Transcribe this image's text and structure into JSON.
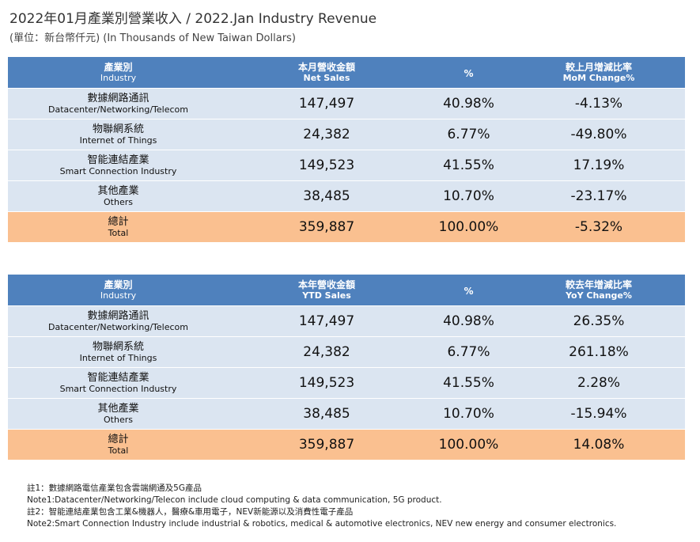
{
  "title": "2022年01月產業別營業收入 / 2022.Jan Industry Revenue",
  "subtitle": "(單位：新台幣仟元) (In Thousands of New Taiwan Dollars)",
  "monthly": {
    "headers": {
      "industry_zh": "產業別",
      "industry_en": "Industry",
      "sales_zh": "本月營收金額",
      "sales_en": "Net Sales",
      "pct": "%",
      "change_zh": "較上月增減比率",
      "change_en": "MoM Change%"
    },
    "rows": [
      {
        "zh": "數據網路通訊",
        "en": "Datacenter/Networking/Telecom",
        "sales": "147,497",
        "pct": "40.98%",
        "change": "-4.13%"
      },
      {
        "zh": "物聯網系統",
        "en": "Internet of Things",
        "sales": "24,382",
        "pct": "6.77%",
        "change": "-49.80%"
      },
      {
        "zh": "智能連結產業",
        "en": "Smart Connection Industry",
        "sales": "149,523",
        "pct": "41.55%",
        "change": "17.19%"
      },
      {
        "zh": "其他產業",
        "en": "Others",
        "sales": "38,485",
        "pct": "10.70%",
        "change": "-23.17%"
      }
    ],
    "total": {
      "zh": "總計",
      "en": "Total",
      "sales": "359,887",
      "pct": "100.00%",
      "change": "-5.32%"
    }
  },
  "ytd": {
    "headers": {
      "industry_zh": "產業別",
      "industry_en": "Industry",
      "sales_zh": "本年營收金額",
      "sales_en": "YTD Sales",
      "pct": "%",
      "change_zh": "較去年增減比率",
      "change_en": "YoY Change%"
    },
    "rows": [
      {
        "zh": "數據網路通訊",
        "en": "Datacenter/Networking/Telecom",
        "sales": "147,497",
        "pct": "40.98%",
        "change": "26.35%"
      },
      {
        "zh": "物聯網系統",
        "en": "Internet of Things",
        "sales": "24,382",
        "pct": "6.77%",
        "change": "261.18%"
      },
      {
        "zh": "智能連結產業",
        "en": "Smart Connection Industry",
        "sales": "149,523",
        "pct": "41.55%",
        "change": "2.28%"
      },
      {
        "zh": "其他產業",
        "en": "Others",
        "sales": "38,485",
        "pct": "10.70%",
        "change": "-15.94%"
      }
    ],
    "total": {
      "zh": "總計",
      "en": "Total",
      "sales": "359,887",
      "pct": "100.00%",
      "change": "14.08%"
    }
  },
  "notes": [
    "註1：數據網路電信產業包含雲端網通及5G產品",
    "Note1:Datacenter/Networking/Telecon include cloud computing & data communication, 5G product.",
    "註2：智能連結產業包含工業&機器人，醫療&車用電子，NEV新能源以及消費性電子產品",
    "Note2:Smart Connection Industry include industrial & robotics, medical & automotive electronics, NEV new energy and consumer electronics."
  ],
  "colors": {
    "header": "#4f81bd",
    "row": "#dbe5f1",
    "total": "#fac090"
  }
}
